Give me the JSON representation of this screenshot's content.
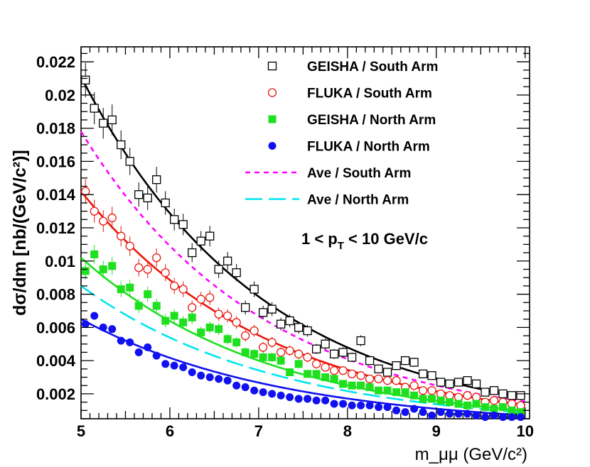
{
  "chart_data": {
    "type": "scatter",
    "ylabel": "dσ/dm [nb/(GeV/c²)]",
    "xlabel": "m_μμ (GeV/c²)",
    "xlim": [
      5,
      10.05
    ],
    "ylim": [
      0.0005,
      0.0229
    ],
    "x_ticks": [
      "5",
      "6",
      "7",
      "8",
      "9",
      "10"
    ],
    "y_ticks": [
      "0.002",
      "0.004",
      "0.006",
      "0.008",
      "0.01",
      "0.012",
      "0.014",
      "0.016",
      "0.018",
      "0.02",
      "0.022"
    ],
    "annotation": {
      "prefix": "1 < p",
      "sub": "T",
      "suffix": " < 10 GeV/c"
    },
    "legend": [
      {
        "label": "GEISHA / South Arm",
        "marker": "open-square",
        "color": "#000000"
      },
      {
        "label": "FLUKA / South Arm",
        "marker": "open-circle",
        "color": "#e8160c"
      },
      {
        "label": "GEISHA / North Arm",
        "marker": "filled-square",
        "color": "#1fe01f"
      },
      {
        "label": "FLUKA / North Arm",
        "marker": "filled-circle",
        "color": "#1010f0"
      },
      {
        "label": "Ave / South Arm",
        "marker": "dashed-line",
        "color": "#ff00ff"
      },
      {
        "label": "Ave / North Arm",
        "marker": "long-dashed-line",
        "color": "#00e5ee"
      }
    ],
    "series": [
      {
        "name": "GEISHA / South Arm",
        "marker": "open-square",
        "color": "#000000",
        "errbar": true,
        "x": [
          5.05,
          5.15,
          5.25,
          5.35,
          5.45,
          5.55,
          5.65,
          5.75,
          5.85,
          5.95,
          6.05,
          6.15,
          6.25,
          6.35,
          6.45,
          6.55,
          6.65,
          6.75,
          6.85,
          6.95,
          7.05,
          7.15,
          7.25,
          7.35,
          7.45,
          7.55,
          7.65,
          7.75,
          7.85,
          7.95,
          8.05,
          8.15,
          8.25,
          8.35,
          8.45,
          8.55,
          8.65,
          8.75,
          8.85,
          8.95,
          9.05,
          9.15,
          9.25,
          9.35,
          9.45,
          9.55,
          9.65,
          9.75,
          9.85,
          9.95
        ],
        "y": [
          0.0209,
          0.0192,
          0.0183,
          0.0185,
          0.017,
          0.016,
          0.014,
          0.0138,
          0.0149,
          0.0135,
          0.0125,
          0.0122,
          0.0105,
          0.0112,
          0.0115,
          0.0095,
          0.01,
          0.0093,
          0.0072,
          0.0083,
          0.0069,
          0.0071,
          0.0062,
          0.0064,
          0.006,
          0.0058,
          0.0047,
          0.005,
          0.0044,
          0.0045,
          0.0042,
          0.0052,
          0.004,
          0.0035,
          0.0033,
          0.0037,
          0.004,
          0.0039,
          0.0032,
          0.0031,
          0.0027,
          0.0026,
          0.0027,
          0.0028,
          0.0026,
          0.0021,
          0.0022,
          0.002,
          0.0019,
          0.0019
        ],
        "fit": {
          "A": 0.0211,
          "k": 0.494
        }
      },
      {
        "name": "FLUKA / South Arm",
        "marker": "open-circle",
        "color": "#e8160c",
        "errbar": true,
        "x": [
          5.05,
          5.15,
          5.25,
          5.35,
          5.45,
          5.55,
          5.65,
          5.75,
          5.85,
          5.95,
          6.05,
          6.15,
          6.25,
          6.35,
          6.45,
          6.55,
          6.65,
          6.75,
          6.85,
          6.95,
          7.05,
          7.15,
          7.25,
          7.35,
          7.45,
          7.55,
          7.65,
          7.75,
          7.85,
          7.95,
          8.05,
          8.15,
          8.25,
          8.35,
          8.45,
          8.55,
          8.65,
          8.75,
          8.85,
          8.95,
          9.05,
          9.15,
          9.25,
          9.35,
          9.45,
          9.55,
          9.65,
          9.75,
          9.85,
          9.95
        ],
        "y": [
          0.0142,
          0.013,
          0.0124,
          0.0126,
          0.0115,
          0.0109,
          0.0096,
          0.0095,
          0.0102,
          0.0093,
          0.0085,
          0.0083,
          0.0072,
          0.0077,
          0.0078,
          0.0068,
          0.0067,
          0.0063,
          0.0055,
          0.0058,
          0.0048,
          0.0051,
          0.0045,
          0.0046,
          0.0044,
          0.0042,
          0.0038,
          0.0036,
          0.0034,
          0.0034,
          0.0032,
          0.0031,
          0.0029,
          0.0029,
          0.0028,
          0.0028,
          0.0024,
          0.0025,
          0.0022,
          0.0022,
          0.002,
          0.0019,
          0.0018,
          0.0019,
          0.0018,
          0.0015,
          0.0016,
          0.0015,
          0.0014,
          0.0013
        ],
        "fit": {
          "A": 0.0142,
          "k": 0.472
        }
      },
      {
        "name": "GEISHA / North Arm",
        "marker": "filled-square",
        "color": "#1fe01f",
        "errbar": true,
        "x": [
          5.05,
          5.15,
          5.25,
          5.35,
          5.45,
          5.55,
          5.65,
          5.75,
          5.85,
          5.95,
          6.05,
          6.15,
          6.25,
          6.35,
          6.45,
          6.55,
          6.65,
          6.75,
          6.85,
          6.95,
          7.05,
          7.15,
          7.25,
          7.35,
          7.45,
          7.55,
          7.65,
          7.75,
          7.85,
          7.95,
          8.05,
          8.15,
          8.25,
          8.35,
          8.45,
          8.55,
          8.65,
          8.75,
          8.85,
          8.95,
          9.05,
          9.15,
          9.25,
          9.35,
          9.45,
          9.55,
          9.65,
          9.75,
          9.85,
          9.95
        ],
        "y": [
          0.0094,
          0.0104,
          0.0095,
          0.0097,
          0.0083,
          0.0084,
          0.0073,
          0.008,
          0.0073,
          0.0064,
          0.0067,
          0.0063,
          0.0066,
          0.0057,
          0.006,
          0.0059,
          0.0053,
          0.0051,
          0.0045,
          0.0044,
          0.0042,
          0.0042,
          0.004,
          0.0033,
          0.0038,
          0.0032,
          0.0032,
          0.003,
          0.0029,
          0.0026,
          0.0025,
          0.0025,
          0.0024,
          0.0022,
          0.0022,
          0.0021,
          0.0021,
          0.0019,
          0.0017,
          0.0017,
          0.0016,
          0.0015,
          0.0014,
          0.0013,
          0.0014,
          0.0012,
          0.0011,
          0.0012,
          0.001,
          0.0009
        ],
        "fit": {
          "A": 0.0102,
          "k": 0.468
        }
      },
      {
        "name": "FLUKA / North Arm",
        "marker": "filled-circle",
        "color": "#1010f0",
        "errbar": false,
        "x": [
          5.05,
          5.15,
          5.25,
          5.35,
          5.45,
          5.55,
          5.65,
          5.75,
          5.85,
          5.95,
          6.05,
          6.15,
          6.25,
          6.35,
          6.45,
          6.55,
          6.65,
          6.75,
          6.85,
          6.95,
          7.05,
          7.15,
          7.25,
          7.35,
          7.45,
          7.55,
          7.65,
          7.75,
          7.85,
          7.95,
          8.05,
          8.15,
          8.25,
          8.35,
          8.45,
          8.55,
          8.65,
          8.75,
          8.85,
          8.95,
          9.05,
          9.15,
          9.25,
          9.35,
          9.45,
          9.55,
          9.65,
          9.75,
          9.85,
          9.95
        ],
        "y": [
          0.0062,
          0.0067,
          0.006,
          0.0059,
          0.0052,
          0.0051,
          0.0045,
          0.0048,
          0.0043,
          0.0038,
          0.0037,
          0.0036,
          0.0033,
          0.0031,
          0.003,
          0.0029,
          0.0028,
          0.0025,
          0.0024,
          0.0022,
          0.0021,
          0.002,
          0.0019,
          0.0018,
          0.0017,
          0.0017,
          0.0016,
          0.0016,
          0.0014,
          0.0014,
          0.0013,
          0.0013,
          0.0013,
          0.0012,
          0.0012,
          0.001,
          0.0009,
          0.0011,
          0.0009,
          0.0007,
          0.0009,
          0.0008,
          0.0008,
          0.0008,
          0.0007,
          0.0006,
          0.0007,
          0.0006,
          0.0006,
          0.0006
        ],
        "fit": {
          "A": 0.0065,
          "k": 0.444
        }
      },
      {
        "name": "Ave / South Arm",
        "marker": "dashed-line",
        "color": "#ff00ff",
        "errbar": false,
        "x": [],
        "y": [],
        "fit": {
          "A": 0.0178,
          "k": 0.49
        }
      },
      {
        "name": "Ave / North Arm",
        "marker": "long-dashed-line",
        "color": "#00e5ee",
        "errbar": false,
        "x": [],
        "y": [],
        "fit": {
          "A": 0.0085,
          "k": 0.456
        }
      }
    ]
  }
}
